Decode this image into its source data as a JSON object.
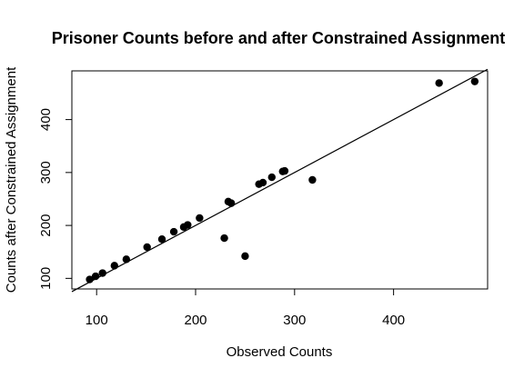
{
  "chart_data": {
    "type": "scatter",
    "title": "Prisoner Counts before and after Constrained Assignment",
    "xlabel": "Observed Counts",
    "ylabel": "Counts after Constrained Assignment",
    "xlim": [
      75,
      495
    ],
    "ylim": [
      80,
      492
    ],
    "x_ticks": [
      100,
      200,
      300,
      400
    ],
    "y_ticks": [
      100,
      200,
      300,
      400
    ],
    "x_tick_labels": [
      "100",
      "200",
      "300",
      "400"
    ],
    "y_tick_labels": [
      "100",
      "200",
      "300",
      "400"
    ],
    "reference_line": {
      "from": [
        75,
        75
      ],
      "to": [
        495,
        495
      ]
    },
    "grid": false,
    "legend": "none",
    "points": [
      {
        "x": 93,
        "y": 98
      },
      {
        "x": 99,
        "y": 104
      },
      {
        "x": 106,
        "y": 110
      },
      {
        "x": 118,
        "y": 124
      },
      {
        "x": 130,
        "y": 136
      },
      {
        "x": 151,
        "y": 159
      },
      {
        "x": 166,
        "y": 174
      },
      {
        "x": 178,
        "y": 188
      },
      {
        "x": 188,
        "y": 197
      },
      {
        "x": 192,
        "y": 201
      },
      {
        "x": 204,
        "y": 214
      },
      {
        "x": 229,
        "y": 176
      },
      {
        "x": 233,
        "y": 245
      },
      {
        "x": 236,
        "y": 242
      },
      {
        "x": 250,
        "y": 142
      },
      {
        "x": 264,
        "y": 278
      },
      {
        "x": 268,
        "y": 281
      },
      {
        "x": 277,
        "y": 291
      },
      {
        "x": 288,
        "y": 302
      },
      {
        "x": 290,
        "y": 303
      },
      {
        "x": 318,
        "y": 286
      },
      {
        "x": 446,
        "y": 469
      },
      {
        "x": 482,
        "y": 472
      }
    ]
  }
}
